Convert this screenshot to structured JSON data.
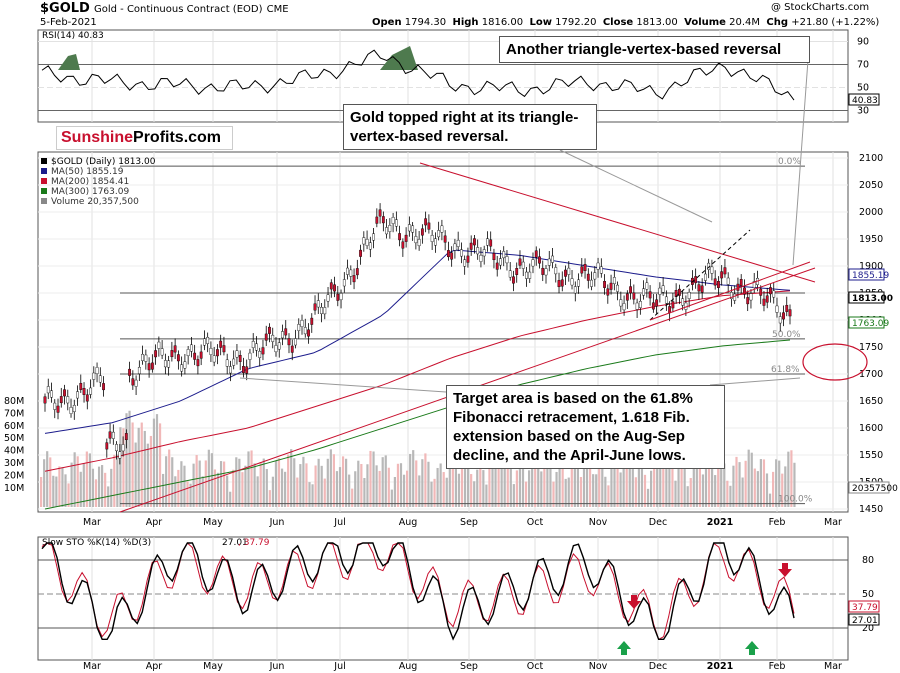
{
  "header": {
    "symbol": "$GOLD",
    "description": "Gold - Continuous Contract (EOD)",
    "exchange": "CME",
    "date": "5-Feb-2021",
    "open_label": "Open",
    "open": "1794.30",
    "high_label": "High",
    "high": "1816.00",
    "low_label": "Low",
    "low": "1792.20",
    "close_label": "Close",
    "close": "1813.00",
    "volume_label": "Volume",
    "volume": "20.4M",
    "chg_label": "Chg",
    "chg": "+21.80 (+1.22%)",
    "watermark": "@ StockCharts.com"
  },
  "rsi_panel": {
    "title": "RSI(14) 40.83",
    "current": "40.83",
    "ticks": [
      "90",
      "70",
      "50",
      "30"
    ]
  },
  "price_panel": {
    "legend": [
      {
        "text": "$GOLD (Daily) 1813.00",
        "color": "#000000"
      },
      {
        "text": "MA(50) 1855.19",
        "color": "#1c1c8c"
      },
      {
        "text": "MA(200) 1854.41",
        "color": "#c8102e"
      },
      {
        "text": "MA(300) 1763.09",
        "color": "#1a7a1a"
      },
      {
        "text": "Volume 20,357,500",
        "color": "#888888"
      }
    ],
    "price_ticks": [
      "2100",
      "2050",
      "2000",
      "1950",
      "1900",
      "1850",
      "1800",
      "1750",
      "1700",
      "1650",
      "1600",
      "1550",
      "1500",
      "1450"
    ],
    "volume_ticks": [
      "80M",
      "70M",
      "60M",
      "50M",
      "40M",
      "30M",
      "20M",
      "10M"
    ],
    "fib_labels": [
      "0.0%",
      "50.0%",
      "61.8%",
      "100.0%"
    ],
    "badges": {
      "ma50": "1855.19",
      "close": "1813.00",
      "ma300": "1763.09",
      "volume": "20357500"
    }
  },
  "sto_panel": {
    "title_prefix": "Slow STO %K(14) %D(3)",
    "k_value": "27.01",
    "d_value": "37.79",
    "ticks": [
      "80",
      "50",
      "20"
    ]
  },
  "months": [
    "Mar",
    "Apr",
    "May",
    "Jun",
    "Jul",
    "Aug",
    "Sep",
    "Oct",
    "Nov",
    "Dec",
    "2021",
    "Feb",
    "Mar"
  ],
  "logo": {
    "part1": "Sunshine",
    "part2": "Profits.com"
  },
  "callouts": {
    "top_right": "Another triangle-vertex-based reversal",
    "middle": "Gold topped right at its triangle-vertex-based reversal.",
    "target": "Target area is based on the 61.8% Fibonacci retracement, 1.618 Fib. extension based on the Aug-Sep decline, and the April-June lows."
  },
  "colors": {
    "price": "#c8102e",
    "ma50": "#1c1c8c",
    "ma200": "#c8102e",
    "ma300": "#1a7a1a",
    "rsi_fill": "#4e7a4e",
    "arrow_up": "#1aa14a",
    "arrow_down": "#c8102e"
  },
  "chart_data": {
    "type": "line",
    "title": "$GOLD Gold - Continuous Contract (EOD)",
    "xlabel": "",
    "ylabel": "",
    "x": [
      "Mar",
      "Apr",
      "May",
      "Jun",
      "Jul",
      "Aug",
      "Sep",
      "Oct",
      "Nov",
      "Dec",
      "2021",
      "Feb"
    ],
    "ylim": [
      1450,
      2100
    ],
    "series": [
      {
        "name": "$GOLD (Daily)",
        "values": [
          1640,
          1690,
          1740,
          1730,
          1800,
          1980,
          1940,
          1900,
          1880,
          1830,
          1880,
          1813
        ]
      },
      {
        "name": "MA(50)",
        "values": [
          1590,
          1610,
          1650,
          1710,
          1740,
          1810,
          1930,
          1920,
          1900,
          1880,
          1865,
          1855
        ]
      },
      {
        "name": "MA(200)",
        "values": [
          1520,
          1545,
          1575,
          1600,
          1640,
          1680,
          1730,
          1770,
          1800,
          1825,
          1845,
          1854
        ]
      },
      {
        "name": "MA(300)",
        "values": [
          1450,
          1475,
          1500,
          1525,
          1560,
          1600,
          1640,
          1680,
          1710,
          1735,
          1752,
          1763
        ]
      }
    ],
    "fibonacci_levels": [
      {
        "label": "0.0%",
        "price": 2085
      },
      {
        "label": "50.0%",
        "price": 1765
      },
      {
        "label": "61.8%",
        "price": 1700
      },
      {
        "label": "100.0%",
        "price": 1460
      }
    ],
    "rsi": {
      "name": "RSI(14)",
      "last": 40.83,
      "values": [
        62,
        55,
        52,
        50,
        60,
        78,
        52,
        48,
        55,
        46,
        70,
        41
      ]
    },
    "stochastic": {
      "k_name": "%K(14)",
      "k_last": 27.01,
      "d_name": "%D(3)",
      "d_last": 37.79,
      "k_values": [
        90,
        15,
        88,
        50,
        82,
        95,
        30,
        55,
        80,
        15,
        95,
        27
      ],
      "d_values": [
        85,
        25,
        80,
        55,
        75,
        90,
        40,
        50,
        70,
        25,
        85,
        38
      ]
    }
  }
}
